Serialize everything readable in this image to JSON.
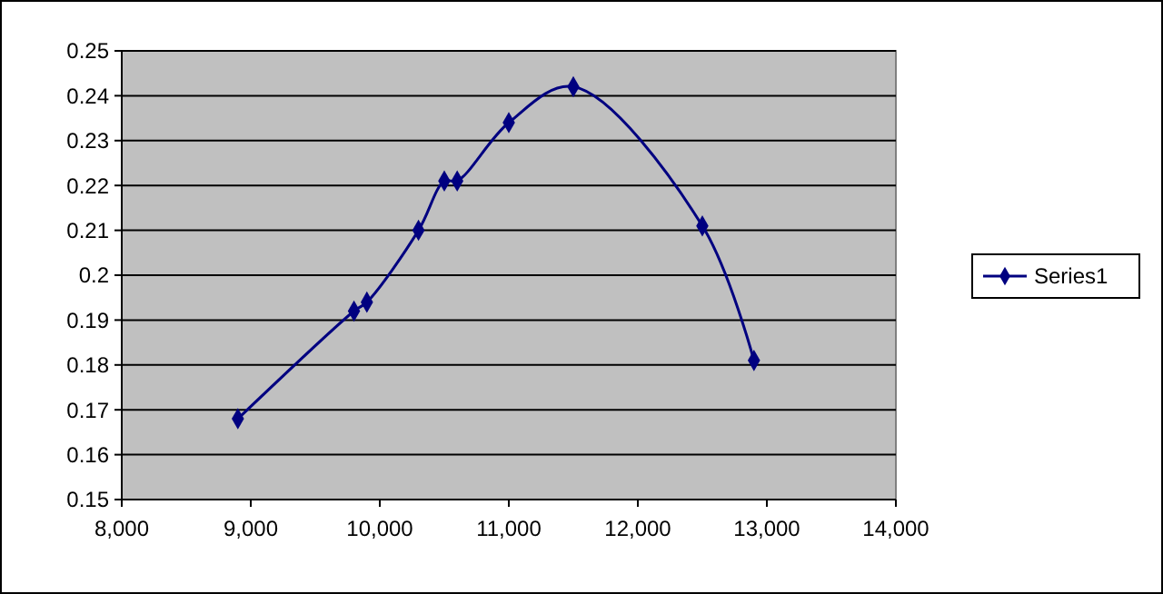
{
  "chart_data": {
    "type": "line",
    "x": [
      8900,
      9800,
      9900,
      10300,
      10500,
      10600,
      11000,
      11500,
      12500,
      12900
    ],
    "series": [
      {
        "name": "Series1",
        "color": "#000080",
        "values": [
          0.168,
          0.192,
          0.194,
          0.21,
          0.221,
          0.221,
          0.234,
          0.242,
          0.211,
          0.181
        ]
      }
    ],
    "xlim": [
      8000,
      14000
    ],
    "xticks": [
      {
        "value": 8000,
        "label": "8,000"
      },
      {
        "value": 9000,
        "label": "9,000"
      },
      {
        "value": 10000,
        "label": "10,000"
      },
      {
        "value": 11000,
        "label": "11,000"
      },
      {
        "value": 12000,
        "label": "12,000"
      },
      {
        "value": 13000,
        "label": "13,000"
      },
      {
        "value": 14000,
        "label": "14,000"
      }
    ],
    "ylim": [
      0.15,
      0.25
    ],
    "yticks": [
      0.15,
      0.16,
      0.17,
      0.18,
      0.19,
      0.2,
      0.21,
      0.22,
      0.23,
      0.24,
      0.25
    ],
    "grid": "y",
    "legend": "right",
    "marker": "diamond",
    "line_style": "solid"
  }
}
